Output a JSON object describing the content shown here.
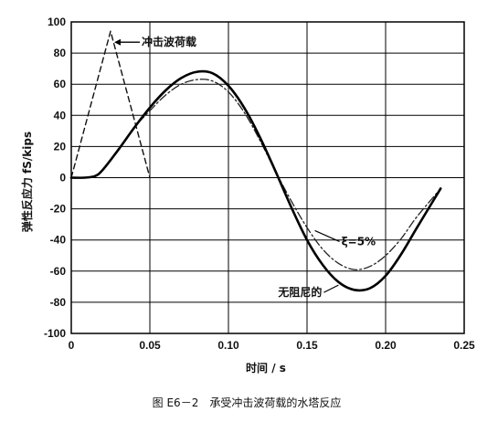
{
  "chart_data": {
    "type": "line",
    "title": "",
    "caption": "图 E6－2　承受冲击波荷载的水塔反应",
    "xlabel": "时间 / s",
    "ylabel": "弹性反应力 fS/kips",
    "xlim": [
      0,
      0.25
    ],
    "ylim": [
      -100,
      100
    ],
    "xticks": [
      0,
      0.05,
      0.1,
      0.15,
      0.2,
      0.25
    ],
    "xtick_labels": [
      "0",
      "0.05",
      "0.10",
      "0.15",
      "0.20",
      "0.25"
    ],
    "yticks": [
      100,
      80,
      60,
      40,
      20,
      0,
      -20,
      -40,
      -60,
      -80,
      -100
    ],
    "ytick_labels": [
      "100",
      "80",
      "60",
      "40",
      "20",
      "0",
      "-20",
      "-40",
      "-60",
      "-80",
      "-100"
    ],
    "grid": true,
    "series": [
      {
        "name": "冲击波荷载",
        "style": "dashed",
        "color": "#111111",
        "x": [
          0,
          0.025,
          0.05
        ],
        "y": [
          0,
          94,
          0
        ]
      },
      {
        "name": "ξ=5%",
        "style": "dashdot",
        "color": "#222222",
        "x": [
          0,
          0.008,
          0.015,
          0.02,
          0.03,
          0.04,
          0.05,
          0.06,
          0.07,
          0.08,
          0.09,
          0.1,
          0.11,
          0.12,
          0.13,
          0.14,
          0.15,
          0.16,
          0.17,
          0.18,
          0.19,
          0.2,
          0.21,
          0.22,
          0.235
        ],
        "y": [
          0,
          0,
          1,
          5,
          18,
          32,
          43,
          53,
          60,
          63,
          62,
          55,
          42,
          24,
          4,
          -15,
          -32,
          -46,
          -55,
          -59,
          -57,
          -50,
          -39,
          -25,
          -7
        ]
      },
      {
        "name": "无阻尼的",
        "style": "solid",
        "color": "#000000",
        "x": [
          0,
          0.008,
          0.015,
          0.02,
          0.03,
          0.04,
          0.05,
          0.06,
          0.07,
          0.08,
          0.09,
          0.1,
          0.11,
          0.12,
          0.13,
          0.14,
          0.15,
          0.16,
          0.17,
          0.18,
          0.19,
          0.2,
          0.21,
          0.22,
          0.235
        ],
        "y": [
          0,
          0,
          1,
          5,
          18,
          32,
          45,
          56,
          64,
          68,
          67,
          59,
          45,
          26,
          4,
          -19,
          -40,
          -56,
          -67,
          -72,
          -71,
          -63,
          -49,
          -32,
          -7
        ]
      }
    ],
    "annotations": [
      {
        "text": "冲击波荷载",
        "target_x": 0.025,
        "target_y": 94
      },
      {
        "text": "ξ=5%",
        "target_x": 0.155,
        "target_y": -34
      },
      {
        "text": "无阻尼的",
        "target_x": 0.17,
        "target_y": -69
      }
    ]
  }
}
